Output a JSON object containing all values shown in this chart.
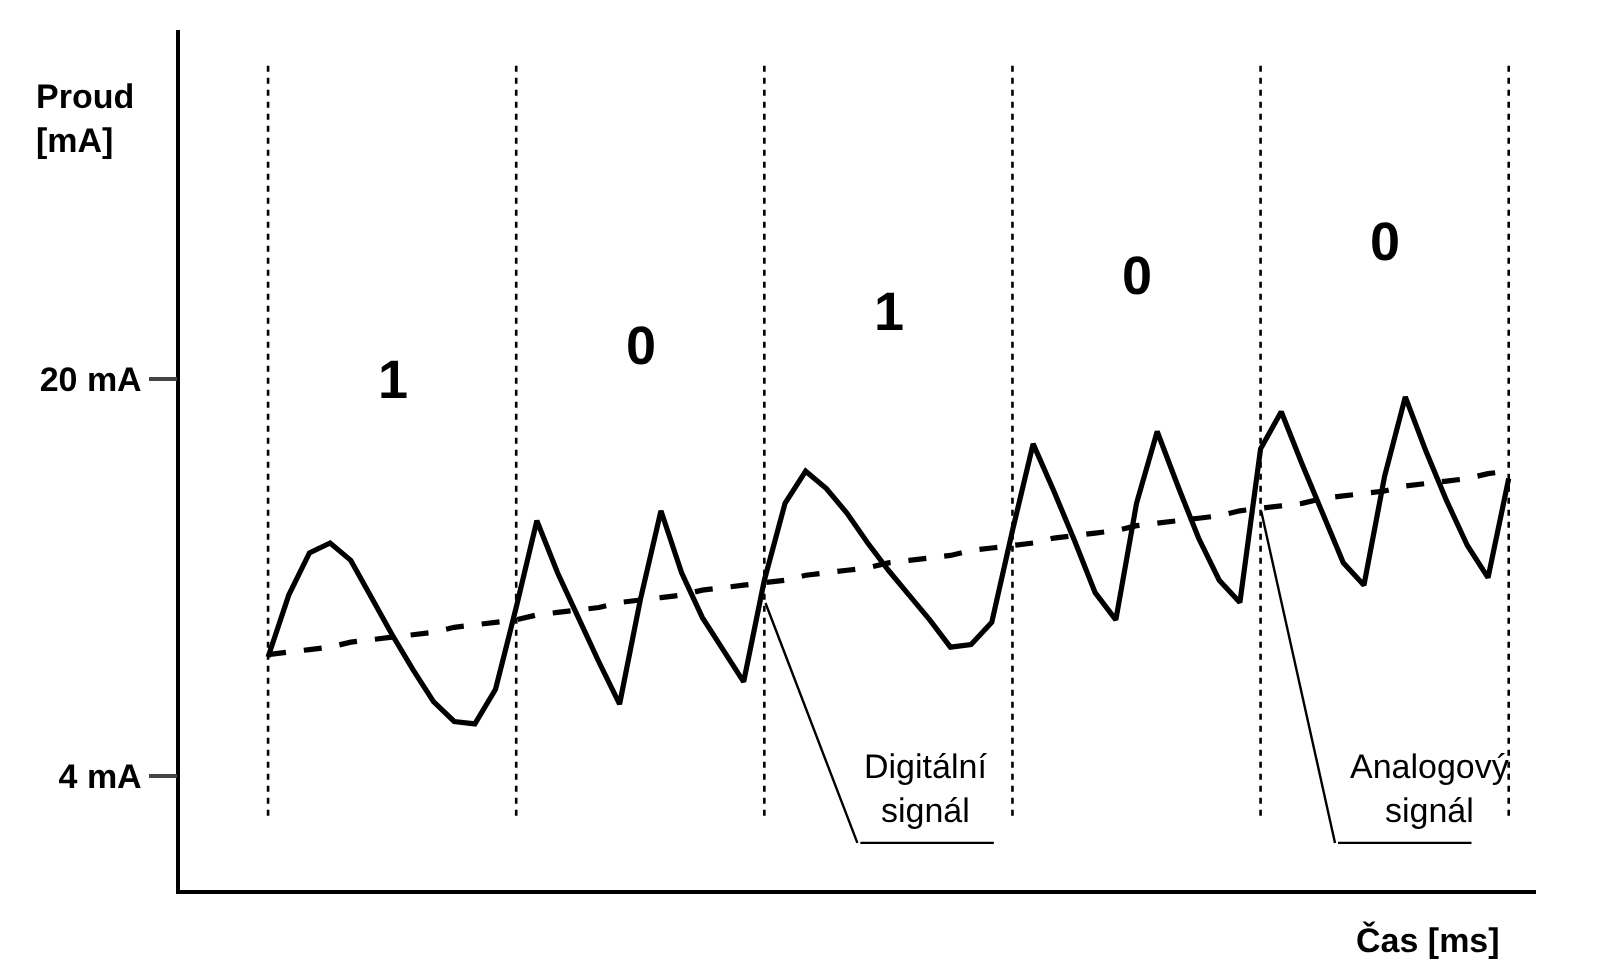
{
  "chart_data": {
    "type": "line",
    "xlabel": "Čas [ms]",
    "ylabel": "Proud\n[mA]",
    "categories": [
      null,
      null,
      null,
      null,
      null,
      null,
      null,
      null,
      null,
      null,
      null,
      null,
      null,
      null,
      null,
      null,
      null,
      null,
      null,
      null,
      null,
      null,
      null,
      null,
      null,
      null,
      null,
      null,
      null,
      null,
      null,
      null,
      null,
      null,
      null,
      null,
      null,
      null,
      null,
      null,
      null,
      null,
      null,
      null,
      null,
      null,
      null,
      null,
      null,
      null,
      null,
      null,
      null,
      null,
      null,
      null,
      null,
      null,
      null,
      null,
      null
    ],
    "ylim": [
      -0.6,
      34.1
    ],
    "yticks": [
      {
        "value": 20,
        "label": "20 mA"
      },
      {
        "value": 4,
        "label": "4 mA"
      }
    ],
    "tick_labels": "y",
    "grid": "x",
    "marker": "none",
    "series": [
      {
        "color": "#000000",
        "line_style": "solid",
        "values": [
          8.8,
          11.3,
          13.0,
          13.4,
          12.7,
          11.2,
          9.7,
          8.3,
          7.0,
          6.2,
          6.1,
          7.5,
          10.8,
          14.3,
          12.2,
          10.4,
          8.6,
          6.9,
          11.1,
          14.7,
          12.2,
          10.4,
          9.1,
          7.8,
          11.9,
          15.0,
          16.3,
          15.6,
          14.6,
          13.4,
          12.3,
          11.3,
          10.3,
          9.2,
          9.3,
          10.2,
          13.9,
          17.4,
          15.5,
          13.5,
          11.4,
          10.3,
          15.0,
          17.9,
          15.7,
          13.6,
          11.9,
          11.0,
          17.2,
          18.7,
          16.6,
          14.6,
          12.6,
          11.7,
          16.1,
          19.3,
          17.1,
          15.1,
          13.3,
          12.0,
          16.0
        ]
      },
      {
        "color": "#000000",
        "line_style": "dashed",
        "values": [
          8.9,
          9.0,
          9.1,
          9.2,
          9.4,
          9.5,
          9.6,
          9.7,
          9.8,
          10.0,
          10.1,
          10.2,
          10.3,
          10.5,
          10.6,
          10.7,
          10.8,
          11.0,
          11.1,
          11.2,
          11.3,
          11.5,
          11.6,
          11.7,
          11.8,
          11.9,
          12.1,
          12.2,
          12.3,
          12.4,
          12.6,
          12.7,
          12.8,
          12.9,
          13.1,
          13.2,
          13.3,
          13.4,
          13.6,
          13.7,
          13.8,
          13.9,
          14.1,
          14.2,
          14.3,
          14.4,
          14.5,
          14.7,
          14.8,
          14.9,
          15.0,
          15.2,
          15.3,
          15.4,
          15.5,
          15.7,
          15.8,
          15.9,
          16.0,
          16.2,
          16.3
        ]
      }
    ],
    "annotations": [
      "1",
      "0",
      "1",
      "0",
      "0",
      "Digitální\nsignál",
      "Analogový\nsignál"
    ]
  }
}
